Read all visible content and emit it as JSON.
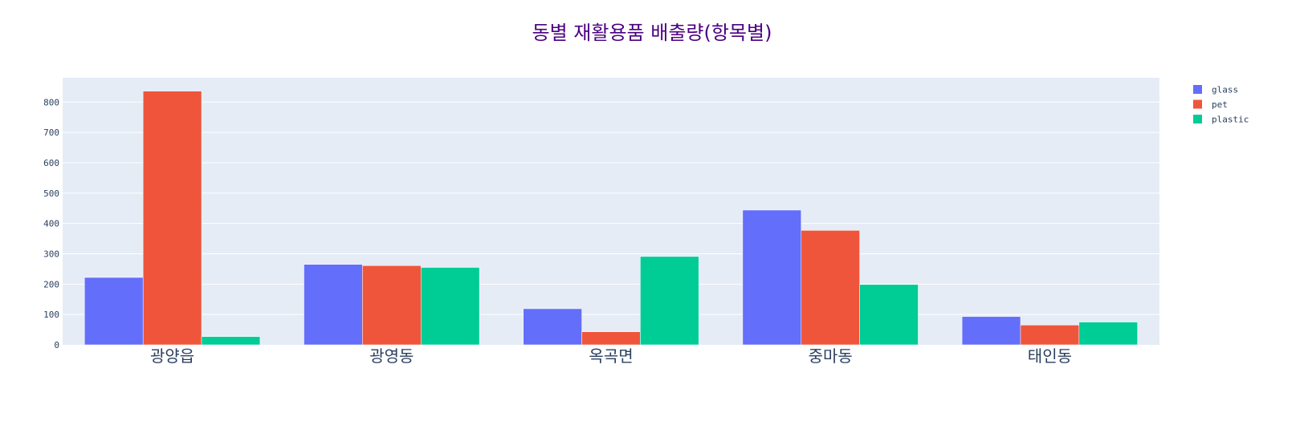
{
  "chart_data": {
    "type": "bar",
    "title": "동별 재활용품 배출량(항목별)",
    "xlabel": "",
    "ylabel": "",
    "categories": [
      "광양읍",
      "광영동",
      "옥곡면",
      "중마동",
      "태인동"
    ],
    "series": [
      {
        "name": "glass",
        "color": "#636efa",
        "values": [
          222,
          265,
          119,
          444,
          93
        ]
      },
      {
        "name": "pet",
        "color": "#ef553b",
        "values": [
          836,
          261,
          43,
          377,
          65
        ]
      },
      {
        "name": "plastic",
        "color": "#00cc96",
        "values": [
          27,
          255,
          291,
          199,
          75
        ]
      }
    ],
    "ylim": [
      0,
      880
    ],
    "yticks": [
      0,
      100,
      200,
      300,
      400,
      500,
      600,
      700,
      800
    ],
    "grid": true,
    "legend_position": "top-right",
    "plot_bgcolor": "#e5ecf6"
  }
}
